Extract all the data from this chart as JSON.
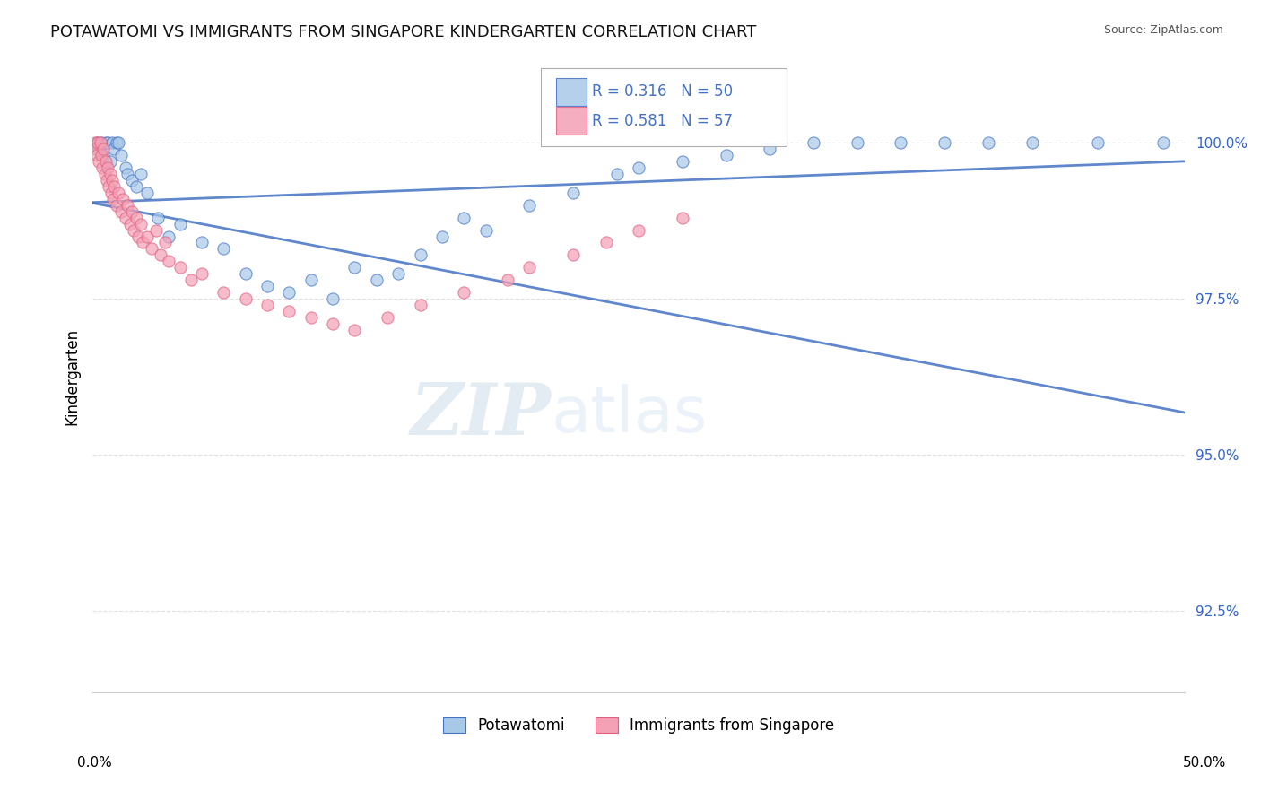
{
  "title": "POTAWATOMI VS IMMIGRANTS FROM SINGAPORE KINDERGARTEN CORRELATION CHART",
  "source_text": "Source: ZipAtlas.com",
  "ylabel": "Kindergarten",
  "y_tick_values": [
    92.5,
    95.0,
    97.5,
    100.0
  ],
  "xlim": [
    0.0,
    50.0
  ],
  "ylim": [
    91.2,
    101.3
  ],
  "legend_r1": "R = 0.316",
  "legend_n1": "N = 50",
  "legend_r2": "R = 0.581",
  "legend_n2": "N = 57",
  "color_blue": "#A8C8E8",
  "color_pink": "#F4A0B5",
  "color_trend": "#4472C4",
  "color_pink_edge": "#E06080",
  "watermark_zip": "ZIP",
  "watermark_atlas": "atlas",
  "potawatomi_x": [
    0.2,
    0.3,
    0.4,
    0.5,
    0.6,
    0.7,
    0.8,
    0.9,
    1.0,
    1.1,
    1.2,
    1.3,
    1.5,
    1.6,
    1.8,
    2.0,
    2.2,
    2.5,
    3.0,
    3.5,
    4.0,
    5.0,
    6.0,
    7.0,
    8.0,
    9.0,
    10.0,
    11.0,
    12.0,
    13.0,
    14.0,
    15.0,
    16.0,
    17.0,
    18.0,
    20.0,
    22.0,
    24.0,
    25.0,
    27.0,
    29.0,
    31.0,
    33.0,
    35.0,
    37.0,
    39.0,
    41.0,
    43.0,
    46.0,
    49.0
  ],
  "potawatomi_y": [
    100.0,
    99.9,
    100.0,
    99.8,
    100.0,
    100.0,
    99.7,
    100.0,
    99.9,
    100.0,
    100.0,
    99.8,
    99.6,
    99.5,
    99.4,
    99.3,
    99.5,
    99.2,
    98.8,
    98.5,
    98.7,
    98.4,
    98.3,
    97.9,
    97.7,
    97.6,
    97.8,
    97.5,
    98.0,
    97.8,
    97.9,
    98.2,
    98.5,
    98.8,
    98.6,
    99.0,
    99.2,
    99.5,
    99.6,
    99.7,
    99.8,
    99.9,
    100.0,
    100.0,
    100.0,
    100.0,
    100.0,
    100.0,
    100.0,
    100.0
  ],
  "singapore_x": [
    0.1,
    0.15,
    0.2,
    0.25,
    0.3,
    0.35,
    0.4,
    0.45,
    0.5,
    0.55,
    0.6,
    0.65,
    0.7,
    0.75,
    0.8,
    0.85,
    0.9,
    0.95,
    1.0,
    1.1,
    1.2,
    1.3,
    1.4,
    1.5,
    1.6,
    1.7,
    1.8,
    1.9,
    2.0,
    2.1,
    2.2,
    2.3,
    2.5,
    2.7,
    2.9,
    3.1,
    3.3,
    3.5,
    4.0,
    4.5,
    5.0,
    6.0,
    7.0,
    8.0,
    9.0,
    10.0,
    11.0,
    12.0,
    13.5,
    15.0,
    17.0,
    19.0,
    20.0,
    22.0,
    23.5,
    25.0,
    27.0
  ],
  "singapore_y": [
    100.0,
    99.9,
    99.8,
    100.0,
    99.7,
    100.0,
    99.8,
    99.6,
    99.9,
    99.5,
    99.7,
    99.4,
    99.6,
    99.3,
    99.5,
    99.2,
    99.4,
    99.1,
    99.3,
    99.0,
    99.2,
    98.9,
    99.1,
    98.8,
    99.0,
    98.7,
    98.9,
    98.6,
    98.8,
    98.5,
    98.7,
    98.4,
    98.5,
    98.3,
    98.6,
    98.2,
    98.4,
    98.1,
    98.0,
    97.8,
    97.9,
    97.6,
    97.5,
    97.4,
    97.3,
    97.2,
    97.1,
    97.0,
    97.2,
    97.4,
    97.6,
    97.8,
    98.0,
    98.2,
    98.4,
    98.6,
    98.8
  ]
}
